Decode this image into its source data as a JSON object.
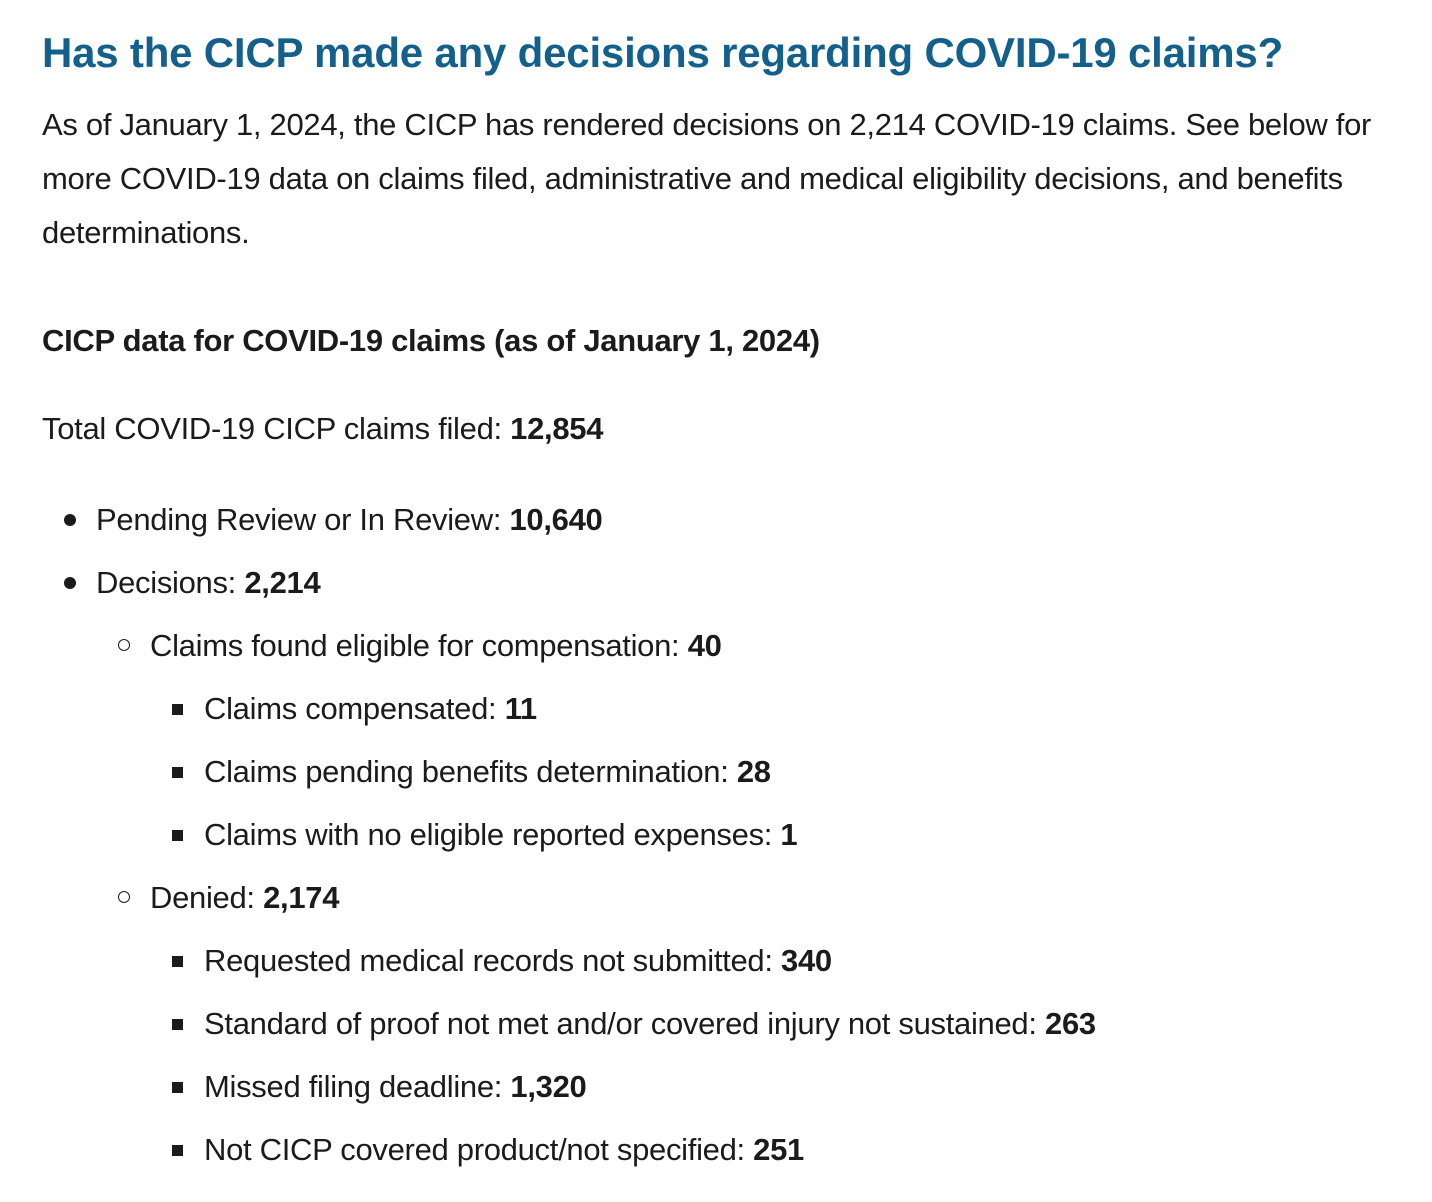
{
  "heading": "Has the CICP made any decisions regarding COVID-19 claims?",
  "intro": "As of January 1, 2024, the CICP has rendered decisions on 2,214 COVID-19 claims. See below for more COVID-19 data on claims filed, administrative and medical eligibility decisions, and benefits determinations.",
  "subheading": "CICP data for COVID-19 claims (as of January 1, 2024)",
  "total": {
    "label": "Total COVID-19 CICP claims filed: ",
    "value": "12,854"
  },
  "pending": {
    "label": "Pending Review or In Review: ",
    "value": "10,640"
  },
  "decisions": {
    "label": "Decisions: ",
    "value": "2,214",
    "eligible": {
      "label": "Claims found eligible for compensation: ",
      "value": "40",
      "items": [
        {
          "label": "Claims compensated: ",
          "value": "11"
        },
        {
          "label": "Claims pending benefits determination: ",
          "value": "28"
        },
        {
          "label": "Claims with no eligible reported expenses: ",
          "value": "1"
        }
      ]
    },
    "denied": {
      "label": "Denied: ",
      "value": "2,174",
      "items": [
        {
          "label": "Requested medical records not submitted: ",
          "value": "340"
        },
        {
          "label": "Standard of proof not met and/or covered injury not sustained: ",
          "value": "263"
        },
        {
          "label": "Missed filing deadline: ",
          "value": "1,320"
        },
        {
          "label": "Not CICP covered product/not specified: ",
          "value": "251"
        }
      ]
    }
  },
  "colors": {
    "heading": "#14608d",
    "text": "#1b1b1b"
  }
}
